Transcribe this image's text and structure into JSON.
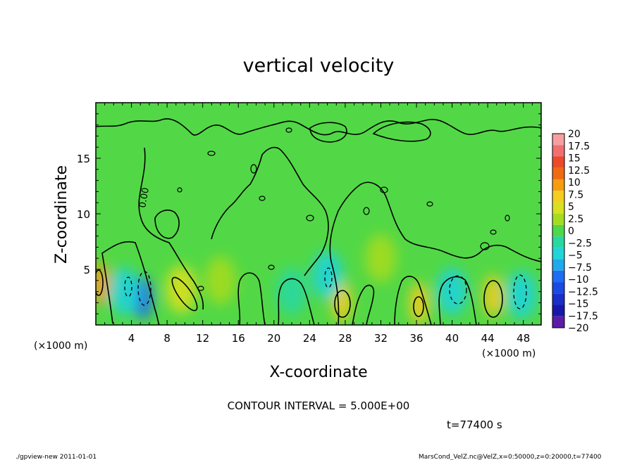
{
  "chart_data": {
    "type": "heatmap",
    "title": "vertical velocity",
    "xlabel": "X-coordinate",
    "ylabel": "Z-coordinate",
    "x_unit": "(×1000 m)",
    "y_unit": "(×1000 m)",
    "xlim": [
      0,
      50
    ],
    "ylim": [
      0,
      20
    ],
    "x_ticks": [
      4,
      8,
      12,
      16,
      20,
      24,
      28,
      32,
      36,
      40,
      44,
      48
    ],
    "y_ticks": [
      5,
      10,
      15
    ],
    "contour_label": "0.00",
    "colorbar": {
      "levels": [
        20,
        17.5,
        15,
        12.5,
        10,
        7.5,
        5,
        2.5,
        0,
        -2.5,
        -5,
        -7.5,
        -10,
        -12.5,
        -15,
        -17.5,
        -20
      ],
      "labels": [
        "20",
        "17.5",
        "15",
        "12.5",
        "10",
        "7.5",
        "5",
        "2.5",
        "0",
        "−2.5",
        "−5",
        "−7.5",
        "−10",
        "−12.5",
        "−15",
        "−17.5",
        "−20"
      ],
      "colors": [
        "#f5a0a0",
        "#f07070",
        "#ec4a2a",
        "#f06a10",
        "#f59c10",
        "#f5cc20",
        "#d8e020",
        "#a4dc20",
        "#4ed84a",
        "#28d8a0",
        "#20d4d8",
        "#20a8ec",
        "#1e6cf2",
        "#1a4ae4",
        "#1a2ec8",
        "#1818a8",
        "#5c1ca8"
      ]
    },
    "hotspots": [
      {
        "x": 0.5,
        "z": 3.7,
        "v": 10
      },
      {
        "x": 5.3,
        "z": 2.4,
        "v": -10
      },
      {
        "x": 3.2,
        "z": 3.0,
        "v": -5
      },
      {
        "x": 9.6,
        "z": 3.2,
        "v": 5
      },
      {
        "x": 27.6,
        "z": 2.1,
        "v": 7.5
      },
      {
        "x": 36.3,
        "z": 1.9,
        "v": 7.5
      },
      {
        "x": 40.0,
        "z": 3.0,
        "v": -5
      },
      {
        "x": 44.6,
        "z": 2.6,
        "v": 7.5
      },
      {
        "x": 47.8,
        "z": 2.7,
        "v": -5
      },
      {
        "x": 26.0,
        "z": 4.5,
        "v": -5
      },
      {
        "x": 32.0,
        "z": 6.0,
        "v": 2.5
      },
      {
        "x": 14.0,
        "z": 4.0,
        "v": 2.5
      },
      {
        "x": 22.0,
        "z": 3.0,
        "v": -2.5
      }
    ],
    "contour_interval_label": "CONTOUR INTERVAL = 5.000E+00",
    "time_label": "t=77400 s"
  },
  "footer": {
    "left": "./gpview-new  2011-01-01",
    "right": "MarsCond_VelZ.nc@VelZ,x=0:50000,z=0:20000,t=77400"
  }
}
